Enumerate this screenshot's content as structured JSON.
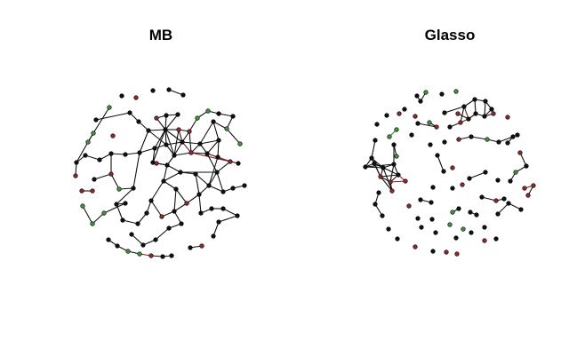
{
  "panels": [
    {
      "title": "MB"
    },
    {
      "title": "Glasso"
    }
  ],
  "node_colors": {
    "black": "#111111",
    "red": "#8b2a2a",
    "green": "#3f8f3f"
  },
  "edge_colors": {
    "dark": "#111111",
    "red": "#7a1f1f",
    "green": "#2f7a2f"
  }
}
